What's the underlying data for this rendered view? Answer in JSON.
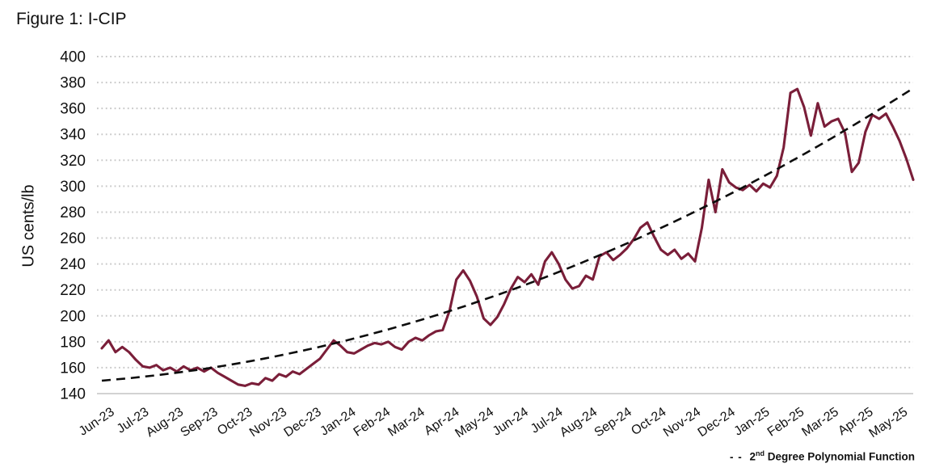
{
  "header": {
    "title": "Figure 1: I-CIP"
  },
  "colors": {
    "series": "#7A1E39",
    "trendline": "#0d0d0d",
    "gridline": "#c8c8c8",
    "axis_baseline": "#c4c4c4",
    "text": "#111111",
    "background": "#ffffff"
  },
  "legend": {
    "marker": "- - ",
    "label_number": "2",
    "label_superscript": "nd",
    "label_rest": " Degree Polynomial Function"
  },
  "chart_data": {
    "type": "line",
    "title": "Figure 1: I-CIP",
    "xlabel": "",
    "ylabel": "US cents/lb",
    "ylim": [
      140,
      400
    ],
    "ytick_step": 20,
    "ytick_labels": [
      "140",
      "160",
      "180",
      "200",
      "220",
      "240",
      "260",
      "280",
      "300",
      "320",
      "340",
      "360",
      "380",
      "400"
    ],
    "x_categories": [
      "Jun-23",
      "Jul-23",
      "Aug-23",
      "Sep-23",
      "Oct-23",
      "Nov-23",
      "Dec-23",
      "Jan-24",
      "Feb-24",
      "Mar-24",
      "Apr-24",
      "May-24",
      "Jun-24",
      "Jul-24",
      "Aug-24",
      "Sep-24",
      "Oct-24",
      "Nov-24",
      "Dec-24",
      "Jan-25",
      "Feb-25",
      "Mar-25",
      "Apr-25",
      "May-25"
    ],
    "grid": "horizontal-dotted",
    "legend_position": "bottom-right",
    "series": [
      {
        "name": "I-CIP",
        "unit": "US cents/lb",
        "points_per_month": 5,
        "values": [
          175,
          181,
          172,
          176,
          172,
          166,
          161,
          160,
          162,
          158,
          160,
          157,
          161,
          158,
          160,
          157,
          160,
          156,
          153,
          150,
          147,
          146,
          148,
          147,
          152,
          150,
          155,
          153,
          157,
          155,
          159,
          163,
          167,
          174,
          181,
          177,
          172,
          171,
          174,
          177,
          179,
          178,
          180,
          176,
          174,
          180,
          183,
          181,
          185,
          188,
          189,
          204,
          228,
          235,
          227,
          215,
          198,
          193,
          199,
          209,
          221,
          230,
          226,
          232,
          224,
          242,
          249,
          240,
          228,
          221,
          223,
          231,
          228,
          246,
          249,
          243,
          247,
          252,
          259,
          268,
          272,
          261,
          251,
          247,
          251,
          244,
          248,
          242,
          268,
          305,
          280,
          313,
          303,
          299,
          297,
          301,
          296,
          302,
          299,
          308,
          330,
          372,
          375,
          361,
          339,
          364,
          346,
          350,
          352,
          341,
          311,
          318,
          342,
          355,
          352,
          356,
          346,
          335,
          321,
          305
        ]
      },
      {
        "name": "2nd Degree Polynomial Function",
        "style": "dashed",
        "poly_coeffs_per_month": [
          150,
          2.1,
          0.31
        ],
        "t_range_months": [
          0,
          23.8
        ],
        "endpoint_values": [
          150,
          375
        ]
      }
    ]
  }
}
